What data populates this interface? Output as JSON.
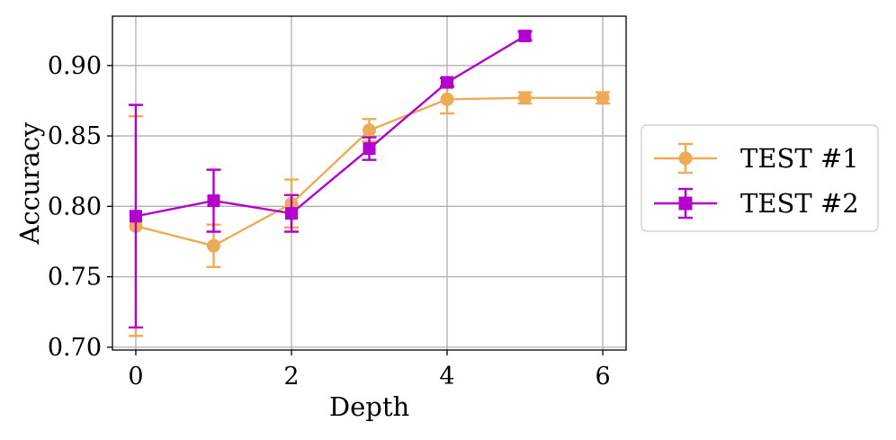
{
  "chart_data": {
    "type": "line",
    "title": "",
    "xlabel": "Depth",
    "ylabel": "Accuracy",
    "xlim": [
      -0.3,
      6.3
    ],
    "ylim": [
      0.698,
      0.935
    ],
    "xticks": [
      0,
      2,
      4,
      6
    ],
    "xtick_labels": [
      "0",
      "2",
      "4",
      "6"
    ],
    "yticks": [
      0.7,
      0.75,
      0.8,
      0.85,
      0.9
    ],
    "ytick_labels": [
      "0.70",
      "0.75",
      "0.80",
      "0.85",
      "0.90"
    ],
    "grid": true,
    "legend_position": "outside-right",
    "series": [
      {
        "name": "TEST #1",
        "color": "#EEAA55",
        "marker": "circle",
        "x": [
          0,
          1,
          2,
          3,
          4,
          5,
          6
        ],
        "y": [
          0.786,
          0.772,
          0.802,
          0.854,
          0.876,
          0.877,
          0.877
        ],
        "err": [
          0.078,
          0.015,
          0.017,
          0.008,
          0.01,
          0.004,
          0.004
        ]
      },
      {
        "name": "TEST #2",
        "color": "#B300CC",
        "marker": "square",
        "x": [
          0,
          1,
          2,
          3,
          4,
          5
        ],
        "y": [
          0.793,
          0.804,
          0.795,
          0.841,
          0.888,
          0.921
        ],
        "err": [
          0.079,
          0.022,
          0.013,
          0.008,
          0.003,
          0.003
        ]
      }
    ]
  }
}
